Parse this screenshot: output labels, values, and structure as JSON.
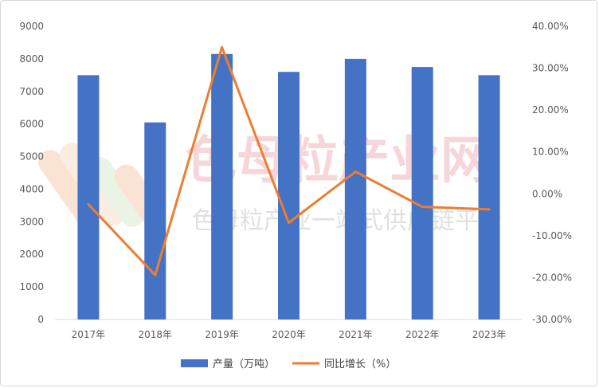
{
  "watermark": {
    "main": "色母粒产业网",
    "sub": "色母粒产业一站式供应链平台"
  },
  "chart_data": {
    "type": "bar",
    "categories": [
      "2017年",
      "2018年",
      "2019年",
      "2020年",
      "2021年",
      "2022年",
      "2023年"
    ],
    "series": [
      {
        "name": "产量（万吨）",
        "type": "bar",
        "axis": "left",
        "color": "#4472c4",
        "values": [
          7500,
          6050,
          8150,
          7600,
          8000,
          7750,
          7500
        ]
      },
      {
        "name": "同比增长（%）",
        "type": "line",
        "axis": "right",
        "color": "#ed7d31",
        "values": [
          -2.5,
          -19.4,
          35.0,
          -6.9,
          5.3,
          -3.1,
          -3.7
        ]
      }
    ],
    "y_left": {
      "ylim": [
        0,
        9000
      ],
      "ticks": [
        0,
        1000,
        2000,
        3000,
        4000,
        5000,
        6000,
        7000,
        8000,
        9000
      ],
      "tick_labels": [
        "0",
        "1000",
        "2000",
        "3000",
        "4000",
        "5000",
        "6000",
        "7000",
        "8000",
        "9000"
      ]
    },
    "y_right": {
      "ylim": [
        -30,
        40
      ],
      "ticks": [
        -30,
        -20,
        -10,
        0,
        10,
        20,
        30,
        40
      ],
      "tick_labels": [
        "-30.00%",
        "-20.00%",
        "-10.00%",
        "0.00%",
        "10.00%",
        "20.00%",
        "30.00%",
        "40.00%"
      ]
    },
    "grid": false,
    "legend_position": "bottom"
  }
}
